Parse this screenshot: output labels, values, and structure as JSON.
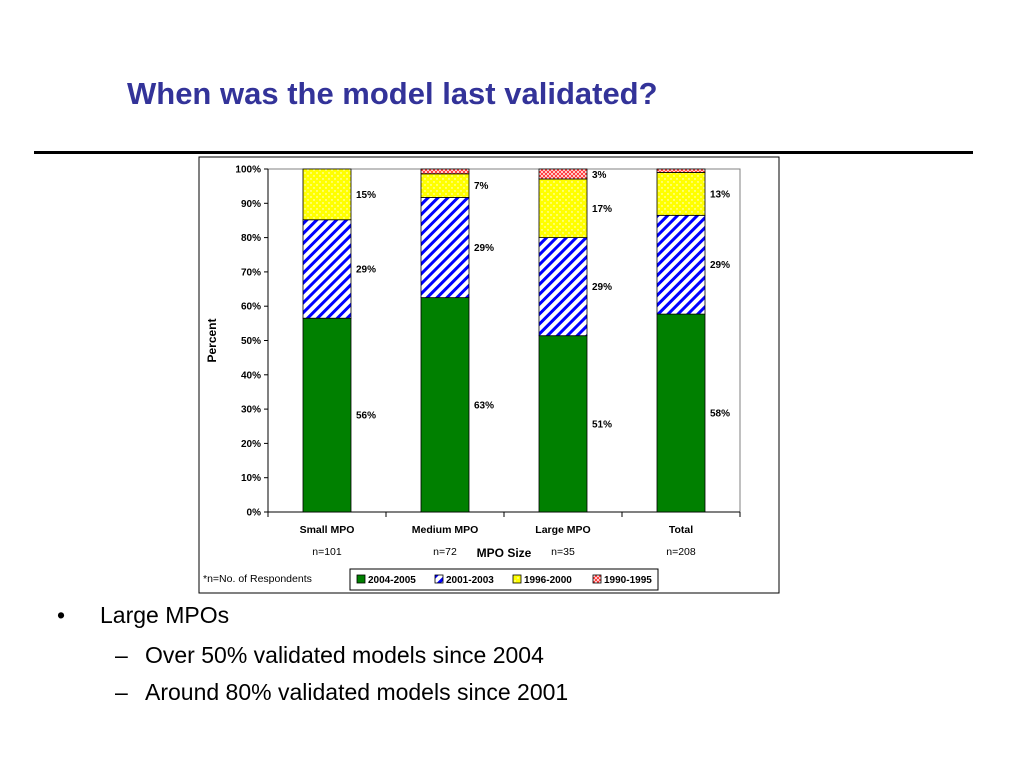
{
  "slide": {
    "title": "When was the model last validated?"
  },
  "bullets": {
    "main": {
      "marker": "•",
      "text": "Large MPOs"
    },
    "sub": [
      {
        "marker": "–",
        "text": "Over 50% validated models since 2004"
      },
      {
        "marker": "–",
        "text": "Around 80% validated models since 2001"
      }
    ]
  },
  "chart_data": {
    "type": "bar",
    "stacked": true,
    "title": "",
    "xlabel": "MPO Size",
    "ylabel": "Percent",
    "ylim": [
      0,
      100
    ],
    "yticks": [
      0,
      10,
      20,
      30,
      40,
      50,
      60,
      70,
      80,
      90,
      100
    ],
    "ytick_labels": [
      "0%",
      "10%",
      "20%",
      "30%",
      "40%",
      "50%",
      "60%",
      "70%",
      "80%",
      "90%",
      "100%"
    ],
    "categories": [
      "Small MPO",
      "Medium MPO",
      "Large MPO",
      "Total"
    ],
    "respondents": [
      "n=101",
      "n=72",
      "n=35",
      "n=208"
    ],
    "footnote": "*n=No. of Respondents",
    "legend_position": "bottom",
    "series": [
      {
        "name": "2004-2005",
        "values": [
          56.5,
          62.5,
          51.4,
          57.7
        ],
        "labels": [
          "56%",
          "63%",
          "51%",
          "58%"
        ],
        "color": "#008000",
        "pattern": "solid"
      },
      {
        "name": "2001-2003",
        "values": [
          28.7,
          29.2,
          28.6,
          28.8
        ],
        "labels": [
          "29%",
          "29%",
          "29%",
          "29%"
        ],
        "color": "#0000ff",
        "pattern": "diagonal-stripes"
      },
      {
        "name": "1996-2000",
        "values": [
          14.8,
          6.9,
          17.1,
          12.5
        ],
        "labels": [
          "15%",
          "7%",
          "17%",
          "13%"
        ],
        "color": "#ffff00",
        "pattern": "dotted"
      },
      {
        "name": "1990-1995",
        "values": [
          0,
          1.4,
          2.9,
          1.0
        ],
        "labels": [
          "",
          "",
          "3%",
          ""
        ],
        "color": "#ff6666",
        "pattern": "crosshatch"
      }
    ]
  }
}
